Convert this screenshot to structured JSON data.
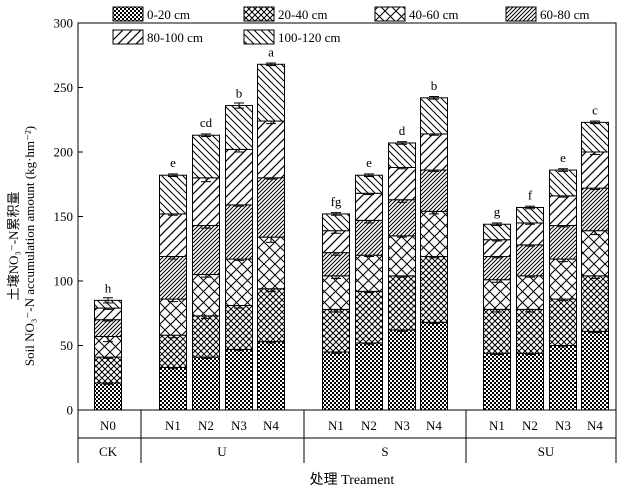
{
  "chart_data": {
    "type": "bar",
    "stacked": true,
    "ylabel_lines": [
      "土壤NO₃⁻-N累积量",
      "Soil NO₃⁻-N accumulation amount (kg·hm⁻²)"
    ],
    "xlabel": "处理 Treament",
    "ylim": [
      0,
      300
    ],
    "yticks": [
      0,
      50,
      100,
      150,
      200,
      250,
      300
    ],
    "legend_position": "top",
    "series": [
      {
        "name": "0-20 cm",
        "pattern": "dots"
      },
      {
        "name": "20-40 cm",
        "pattern": "crosshatch"
      },
      {
        "name": "40-60 cm",
        "pattern": "cross-wide"
      },
      {
        "name": "60-80 cm",
        "pattern": "diag-dense"
      },
      {
        "name": "80-100 cm",
        "pattern": "diag-sparse"
      },
      {
        "name": "100-120 cm",
        "pattern": "backdiag"
      }
    ],
    "groups": [
      {
        "name": "CK",
        "bars": [
          {
            "label": "N0",
            "letter": "h",
            "layers": [
              21,
              20,
              16,
              13,
              9,
              6
            ],
            "err": [
              1,
              1,
              4,
              1,
              1,
              2
            ]
          }
        ]
      },
      {
        "name": "U",
        "bars": [
          {
            "label": "N1",
            "letter": "e",
            "layers": [
              33,
              25,
              28,
              33,
              33,
              30
            ],
            "err": [
              1,
              2,
              2,
              2,
              1,
              1
            ]
          },
          {
            "label": "N2",
            "letter": "cd",
            "layers": [
              41,
              32,
              32,
              38,
              37,
              33
            ],
            "err": [
              1,
              2,
              2,
              2,
              3,
              1
            ]
          },
          {
            "label": "N3",
            "letter": "b",
            "layers": [
              47,
              34,
              36,
              42,
              43,
              34
            ],
            "err": [
              1,
              2,
              1,
              1,
              2,
              2
            ]
          },
          {
            "label": "N4",
            "letter": "a",
            "layers": [
              53,
              41,
              40,
              46,
              44,
              44
            ],
            "err": [
              1,
              2,
              4,
              1,
              2,
              1
            ]
          }
        ]
      },
      {
        "name": "S",
        "bars": [
          {
            "label": "N1",
            "letter": "fg",
            "layers": [
              45,
              33,
              26,
              18,
              17,
              13
            ],
            "err": [
              1,
              2,
              2,
              2,
              2,
              1
            ]
          },
          {
            "label": "N2",
            "letter": "e",
            "layers": [
              52,
              40,
              28,
              27,
              21,
              14
            ],
            "err": [
              1,
              1,
              1,
              2,
              1,
              1
            ]
          },
          {
            "label": "N3",
            "letter": "d",
            "layers": [
              62,
              42,
              31,
              28,
              25,
              19
            ],
            "err": [
              1,
              1,
              1,
              2,
              1,
              1
            ]
          },
          {
            "label": "N4",
            "letter": "b",
            "layers": [
              68,
              51,
              35,
              32,
              28,
              28
            ],
            "err": [
              1,
              1,
              2,
              1,
              1,
              1
            ]
          }
        ]
      },
      {
        "name": "SU",
        "bars": [
          {
            "label": "N1",
            "letter": "g",
            "layers": [
              44,
              34,
              23,
              18,
              13,
              12
            ],
            "err": [
              1,
              2,
              2,
              1,
              1,
              1
            ]
          },
          {
            "label": "N2",
            "letter": "f",
            "layers": [
              44,
              34,
              26,
              24,
              17,
              12
            ],
            "err": [
              1,
              2,
              1,
              1,
              1,
              1
            ]
          },
          {
            "label": "N3",
            "letter": "e",
            "layers": [
              50,
              36,
              31,
              26,
              23,
              20
            ],
            "err": [
              1,
              1,
              2,
              1,
              1,
              1
            ]
          },
          {
            "label": "N4",
            "letter": "c",
            "layers": [
              61,
              43,
              35,
              33,
              28,
              23
            ],
            "err": [
              1,
              2,
              3,
              1,
              2,
              1
            ]
          }
        ]
      }
    ]
  }
}
